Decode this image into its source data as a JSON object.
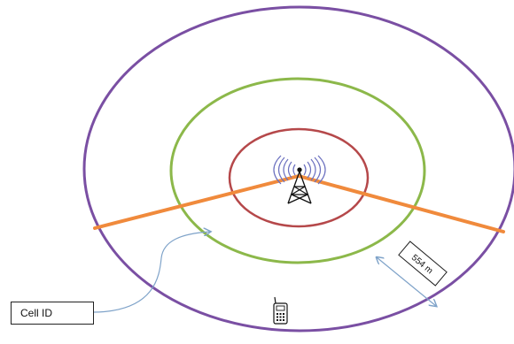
{
  "labels": {
    "cell_id": "Cell ID",
    "distance": "554 m"
  },
  "colors": {
    "outer_ring": "#7a4fa3",
    "middle_ring": "#8cb84a",
    "inner_ring": "#b5484a",
    "sector_lines": "#f08a3c",
    "pointer_arrow": "#7fa3c9",
    "measure_arrow": "#7fa3c9",
    "signal_waves": "#6a6fbf"
  },
  "icons": {
    "tower": "cell-tower-icon",
    "phone": "mobile-phone-icon"
  }
}
